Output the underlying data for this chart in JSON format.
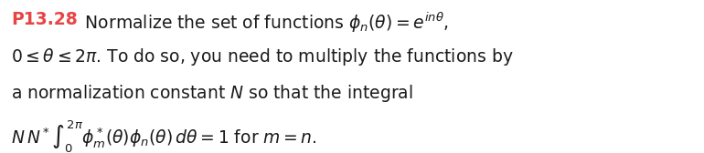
{
  "background_color": "#ffffff",
  "label_color": "#e84444",
  "label_text": "P13.28",
  "body_color": "#1a1a1a",
  "line1_suffix": "   Normalize the set of functions $\\phi_n(\\theta) = e^{in\\theta}$,",
  "line2": "$0 \\leq \\theta \\leq 2\\pi$. To do so, you need to multiply the functions by",
  "line3": "a normalization constant $N$ so that the integral",
  "line4": "$N\\,N^* \\int_0^{2\\pi} \\phi_m^*(\\theta)\\phi_n(\\theta)\\,d\\theta = 1$ for $m = n$.",
  "fontsize": 13.5,
  "label_fontsize": 13.5,
  "fig_width": 7.7,
  "fig_height": 1.68,
  "dpi": 100
}
